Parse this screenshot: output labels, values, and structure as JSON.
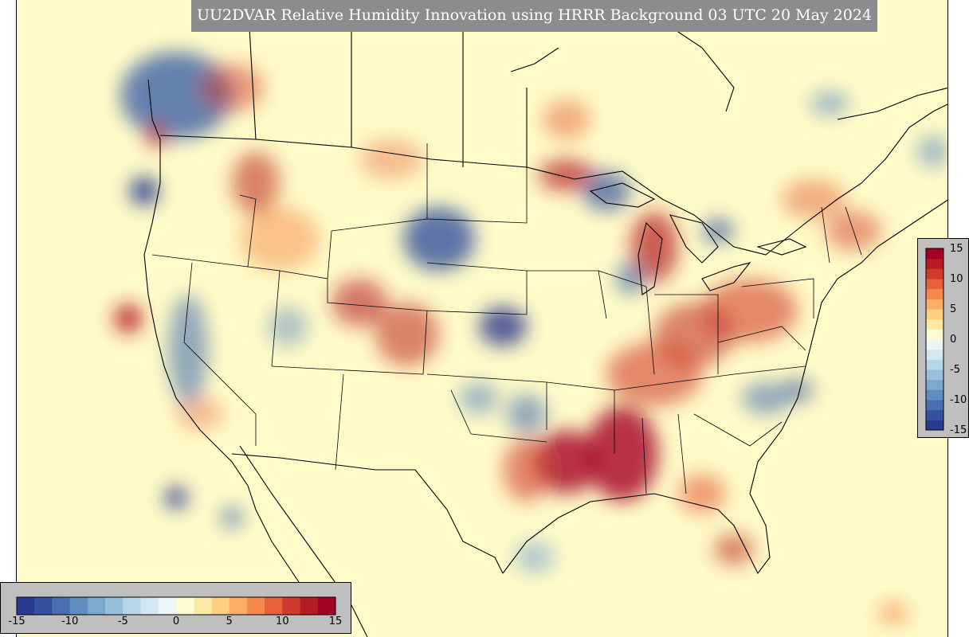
{
  "title": "UU2DVAR Relative Humidity Innovation using HRRR Background 03 UTC 20 May 2024",
  "colorbar": {
    "min": -15,
    "max": 15,
    "ticks": [
      "-15",
      "-10",
      "-5",
      "0",
      "5",
      "10",
      "15"
    ],
    "tick_values": [
      -15,
      -10,
      -5,
      0,
      5,
      10,
      15
    ],
    "colors": [
      "#2a3a8f",
      "#35519e",
      "#4a6fb0",
      "#5f8cc0",
      "#7aa8cf",
      "#98c0dc",
      "#b7d6e8",
      "#d4e8f1",
      "#ecf5f5",
      "#fdfbd2",
      "#fde9a4",
      "#fccf81",
      "#f9ae64",
      "#f3894c",
      "#e6603a",
      "#d13a2c",
      "#b71c24",
      "#a50026"
    ]
  },
  "map": {
    "background_color": "#fffbc8",
    "projection": "Lambert conformal, contiguous United States"
  }
}
